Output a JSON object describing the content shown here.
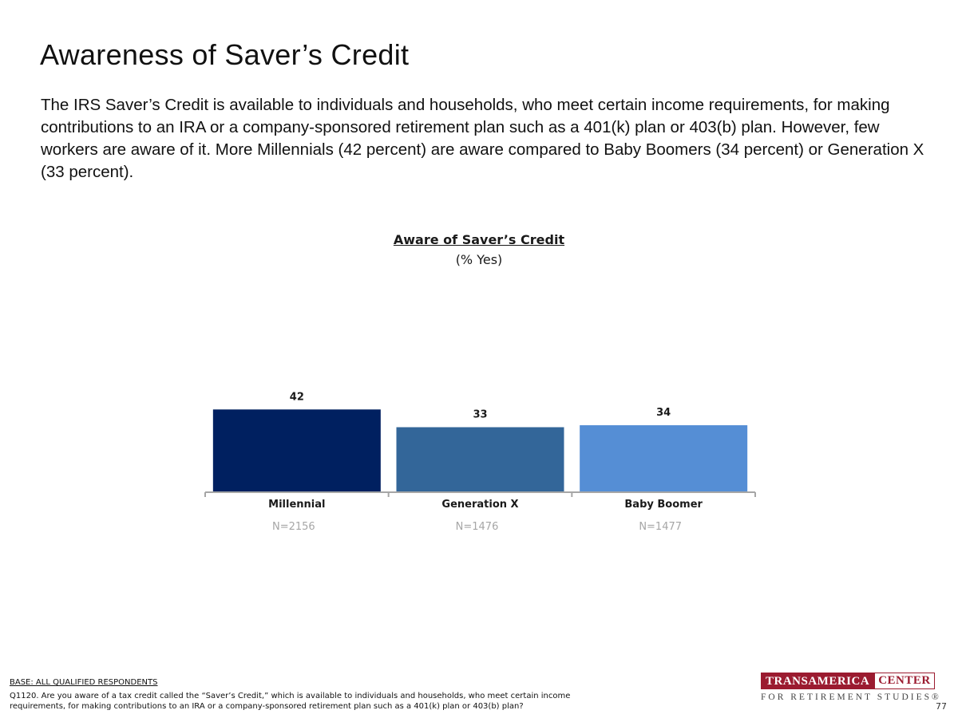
{
  "slide": {
    "title": "Awareness of Saver’s Credit",
    "description": "The IRS Saver’s Credit is available to individuals and households, who meet certain income requirements, for making contributions to an IRA or a company-sponsored retirement plan such as a 401(k) plan or 403(b) plan. However, few workers are aware of it. More Millennials (42 percent) are aware compared to Baby Boomers (34 percent) or Generation X (33 percent).",
    "base": "BASE: ALL QUALIFIED RESPONDENTS",
    "question": "Q1120. Are you aware of a tax credit called the “Saver’s Credit,” which is available to individuals and households, who meet certain income requirements, for making contributions to an IRA or a company-sponsored retirement plan such as a 401(k) plan or 403(b) plan?",
    "page_number": "77"
  },
  "logo": {
    "word1": "TRANSAMERICA",
    "word2": "CENTER",
    "tagline": "FOR RETIREMENT STUDIES®"
  },
  "chart_data": {
    "type": "bar",
    "title": "Aware of Saver’s Credit",
    "subtitle": "(% Yes)",
    "categories": [
      "Millennial",
      "Generation X",
      "Baby Boomer"
    ],
    "sample_sizes": [
      "N=2156",
      "N=1476",
      "N=1477"
    ],
    "values": [
      42,
      33,
      34
    ],
    "colors": [
      "#002060",
      "#336699",
      "#558ed5"
    ],
    "ylim": [
      0,
      100
    ],
    "grid": false,
    "legend": "none"
  }
}
